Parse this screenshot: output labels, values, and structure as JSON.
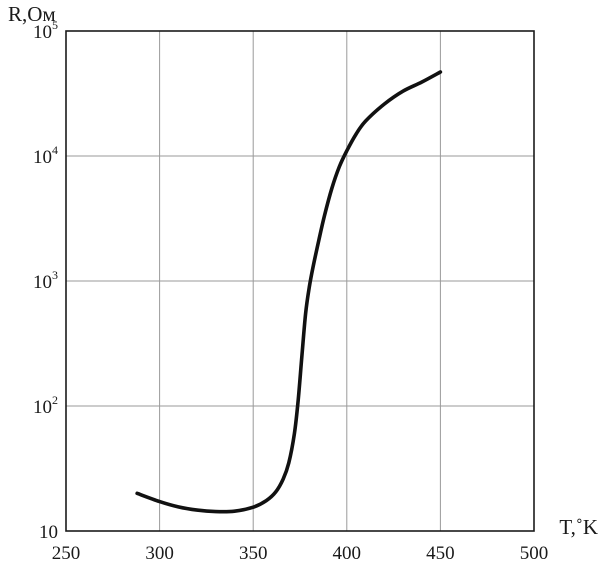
{
  "chart_data": {
    "type": "line",
    "title": "",
    "xlabel": "T,˚K",
    "ylabel": "R,Ом",
    "xlim": [
      250,
      500
    ],
    "ylim": [
      10,
      100000
    ],
    "yscale": "log",
    "grid": true,
    "x_ticks": [
      "250",
      "300",
      "350",
      "400",
      "450",
      "500"
    ],
    "y_ticks": [
      {
        "base": "10",
        "exp": ""
      },
      {
        "base": "10",
        "exp": "2"
      },
      {
        "base": "10",
        "exp": "3"
      },
      {
        "base": "10",
        "exp": "4"
      },
      {
        "base": "10",
        "exp": "5"
      }
    ],
    "series": [
      {
        "color": "#111111",
        "x": [
          288,
          300,
          310,
          320,
          330,
          340,
          350,
          357,
          362,
          366,
          369,
          372,
          374,
          376,
          378,
          380,
          382,
          385,
          388,
          392,
          396,
          400,
          405,
          410,
          420,
          430,
          440,
          450
        ],
        "y": [
          20,
          17.2,
          15.6,
          14.7,
          14.3,
          14.4,
          15.5,
          17.5,
          20.5,
          26,
          35,
          60,
          110,
          250,
          550,
          900,
          1300,
          2100,
          3300,
          5500,
          8200,
          11000,
          15000,
          19000,
          26000,
          33000,
          39000,
          47000
        ]
      }
    ]
  }
}
